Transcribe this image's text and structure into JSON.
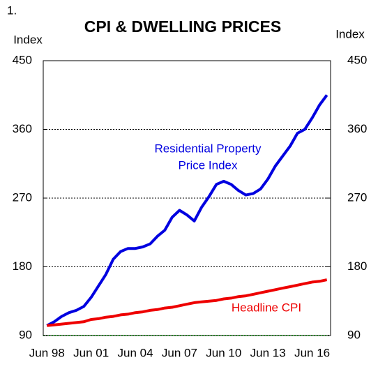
{
  "chart_data": {
    "type": "line",
    "figure_number": "1.",
    "title": "CPI & DWELLING PRICES",
    "ylabel": "Index",
    "y2label": "Index",
    "categories": [
      "Jun 98",
      null,
      null,
      null,
      null,
      null,
      "Jun 01",
      null,
      null,
      null,
      null,
      null,
      "Jun 04",
      null,
      null,
      null,
      null,
      null,
      "Jun 07",
      null,
      null,
      null,
      null,
      null,
      "Jun 10",
      null,
      null,
      null,
      null,
      null,
      "Jun 13",
      null,
      null,
      null,
      null,
      null,
      "Jun 16",
      null,
      null
    ],
    "series": [
      {
        "color": "#0000e0",
        "values": [
          103,
          108,
          115,
          120,
          123,
          128,
          140,
          155,
          170,
          190,
          200,
          204,
          204,
          206,
          210,
          220,
          228,
          245,
          254,
          248,
          240,
          258,
          272,
          288,
          292,
          288,
          280,
          274,
          276,
          282,
          295,
          312,
          325,
          338,
          355,
          360,
          375,
          392,
          405
        ]
      },
      {
        "color": "#ee0000",
        "values": [
          103,
          104,
          105,
          106,
          107,
          108,
          111,
          112,
          114,
          115,
          117,
          118,
          120,
          121,
          123,
          124,
          126,
          127,
          129,
          131,
          133,
          134,
          135,
          136,
          138,
          139,
          141,
          142,
          144,
          146,
          148,
          150,
          152,
          154,
          156,
          158,
          160,
          161,
          163
        ]
      }
    ],
    "annotations": [
      {
        "text": "Residential Property",
        "color": "#0000e0"
      },
      {
        "text": "Price Index",
        "color": "#0000e0"
      },
      {
        "text": "Headline CPI",
        "color": "#ee0000"
      }
    ],
    "ylim": [
      90,
      450
    ],
    "yticks": [
      90,
      180,
      270,
      360,
      450
    ],
    "y2lim": [
      90,
      450
    ],
    "y2ticks": [
      90,
      180,
      270,
      360,
      450
    ],
    "grid": true
  }
}
